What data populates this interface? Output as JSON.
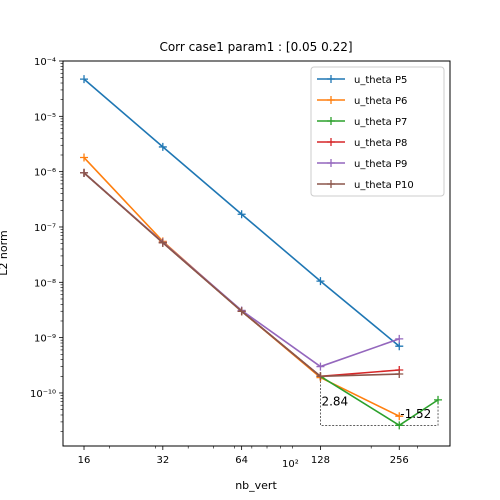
{
  "chart_data": {
    "type": "line",
    "title": "Corr case1 param1 : [0.05 0.22]",
    "xlabel": "nb_vert",
    "ylabel": "L2 norm",
    "xscale": "log",
    "yscale": "log",
    "xlim": [
      13.3,
      400
    ],
    "ylim": [
      1.1e-11,
      0.0001
    ],
    "x_ticks": [
      16,
      32,
      64,
      128,
      256
    ],
    "x_tick_labels": [
      "16",
      "32",
      "64",
      "128",
      "256"
    ],
    "x_extra_label": "10²",
    "y_ticks": [
      1e-10,
      1e-09,
      1e-08,
      1e-07,
      1e-06,
      1e-05,
      0.0001
    ],
    "y_tick_labels": [
      "10⁻¹⁰",
      "10⁻⁹",
      "10⁻⁸",
      "10⁻⁷",
      "10⁻⁶",
      "10⁻⁵",
      "10⁻⁴"
    ],
    "grid": false,
    "legend": "top-right",
    "series": [
      {
        "name": "u_theta P5",
        "color": "#1f77b4",
        "x": [
          16,
          32,
          64,
          128,
          256
        ],
        "y": [
          4.7e-05,
          2.8e-06,
          1.7e-07,
          1.05e-08,
          7e-10
        ]
      },
      {
        "name": "u_theta P6",
        "color": "#ff7f0e",
        "x": [
          16,
          32,
          64,
          128,
          256
        ],
        "y": [
          1.8e-06,
          5.5e-08,
          3e-09,
          1.9e-10,
          3.8e-11
        ]
      },
      {
        "name": "u_theta P7",
        "color": "#2ca02c",
        "x": [
          16,
          32,
          64,
          128,
          256,
          360
        ],
        "y": [
          9.5e-07,
          5.2e-08,
          3e-09,
          2e-10,
          2.6e-11,
          7.5e-11
        ]
      },
      {
        "name": "u_theta P8",
        "color": "#d62728",
        "x": [
          16,
          32,
          64,
          128,
          256
        ],
        "y": [
          9.5e-07,
          5.2e-08,
          3e-09,
          2e-10,
          2.6e-10
        ]
      },
      {
        "name": "u_theta P9",
        "color": "#9467bd",
        "x": [
          16,
          32,
          64,
          128,
          256
        ],
        "y": [
          9.5e-07,
          5.3e-08,
          3.1e-09,
          3e-10,
          9.5e-10
        ]
      },
      {
        "name": "u_theta P10",
        "color": "#8c564b",
        "x": [
          16,
          32,
          64,
          128,
          256
        ],
        "y": [
          9.5e-07,
          5.2e-08,
          3e-09,
          2e-10,
          2.2e-10
        ]
      }
    ],
    "annotations": [
      {
        "text": "2.84",
        "x": 128,
        "y": 7e-11
      },
      {
        "text": "-1.52",
        "x": 256,
        "y": 4.2e-11
      }
    ],
    "slope_triangles": [
      {
        "x1": 128,
        "y1": 1.9e-10,
        "x2": 256,
        "y2": 2.6e-11
      },
      {
        "x1": 256,
        "y1": 2.6e-11,
        "x2": 360,
        "y2": 7.5e-11
      }
    ]
  }
}
